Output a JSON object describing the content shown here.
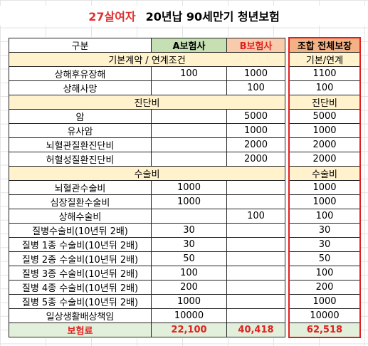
{
  "title": {
    "highlight": "27살여자",
    "main": "20년납 90세만기 청년보험"
  },
  "table": {
    "header": {
      "label": "구분",
      "a": "A보험사",
      "b": "B보험사",
      "total": "조합 전체보장"
    },
    "rows": [
      {
        "section": "기본계약 / 연계조건",
        "total": "기본/연계"
      },
      {
        "label": "상해후유장해",
        "a": 100,
        "b": 1000,
        "total": 1100
      },
      {
        "label": "상해사망",
        "b": 100,
        "total": 100
      },
      {
        "section": "진단비",
        "total": "진단비"
      },
      {
        "label": "암",
        "b": 5000,
        "total": 5000
      },
      {
        "label": "유사암",
        "b": 1000,
        "total": 1000
      },
      {
        "label": "뇌혈관질환진단비",
        "b": 2000,
        "total": 2000
      },
      {
        "label": "허혈성질환진단비",
        "b": 2000,
        "total": 2000
      },
      {
        "section": "수술비",
        "total": "수술비"
      },
      {
        "label": "뇌혈관수술비",
        "a": 1000,
        "total": 1000
      },
      {
        "label": "심장질환수술비",
        "a": 1000,
        "total": 1000
      },
      {
        "label": "상해수술비",
        "b": 100,
        "total": 100
      },
      {
        "label": "질병수술비(10년뒤 2배)",
        "a": 30,
        "total": 30
      },
      {
        "label": "질병 1종 수술비(10년뒤 2배)",
        "a": 30,
        "total": 30
      },
      {
        "label": "질병 2종 수술비(10년뒤 2배)",
        "a": 50,
        "total": 50
      },
      {
        "label": "질병 3종 수술비(10년뒤 2배)",
        "a": 100,
        "total": 100
      },
      {
        "label": "질병 4종 수술비(10년뒤 2배)",
        "a": 200,
        "total": 200
      },
      {
        "label": "질병 5종 수술비(10년뒤 2배)",
        "a": 1000,
        "total": 1000
      },
      {
        "label": "일상생활배상책임",
        "a": 10000,
        "total": 10000
      }
    ],
    "footer": {
      "label": "보험료",
      "a": "22,100",
      "b": "40,418",
      "total": "62,518"
    }
  }
}
